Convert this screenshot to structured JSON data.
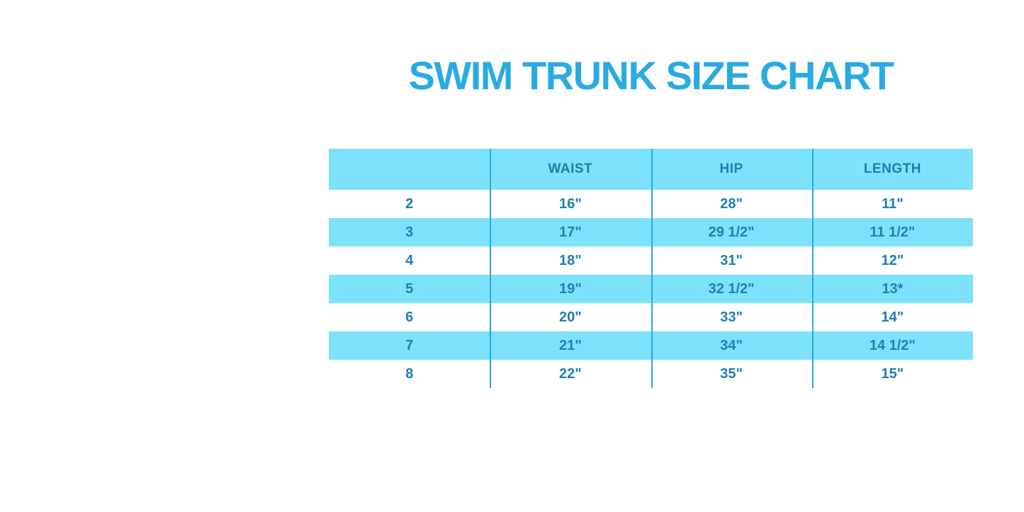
{
  "title": "SWIM TRUNK SIZE CHART",
  "colors": {
    "title_blue": "#29ABE2",
    "stripe_blue": "#7DE2FB",
    "divider_blue": "#2AA7D9",
    "cell_text_blue": "#1E7FB4",
    "header_text_blue": "#1F7BAD",
    "background": "#FFFFFF"
  },
  "chart_data": {
    "type": "table",
    "title": "SWIM TRUNK SIZE CHART",
    "columns": [
      "",
      "WAIST",
      "HIP",
      "LENGTH"
    ],
    "rows": [
      [
        "2",
        "16\"",
        "28\"",
        "11\""
      ],
      [
        "3",
        "17\"",
        "29 1/2\"",
        "11 1/2\""
      ],
      [
        "4",
        "18\"",
        "31\"",
        "12\""
      ],
      [
        "5",
        "19\"",
        "32 1/2\"",
        "13*"
      ],
      [
        "6",
        "20\"",
        "33\"",
        "14\""
      ],
      [
        "7",
        "21\"",
        "34\"",
        "14 1/2\""
      ],
      [
        "8",
        "22\"",
        "35\"",
        "15\""
      ]
    ],
    "layout_hints": {
      "header_background": "#7DE2FB",
      "row_striping": "alternating white and #7DE2FB starting with white",
      "column_dividers": 3,
      "grid": "vertical dividers only"
    }
  }
}
